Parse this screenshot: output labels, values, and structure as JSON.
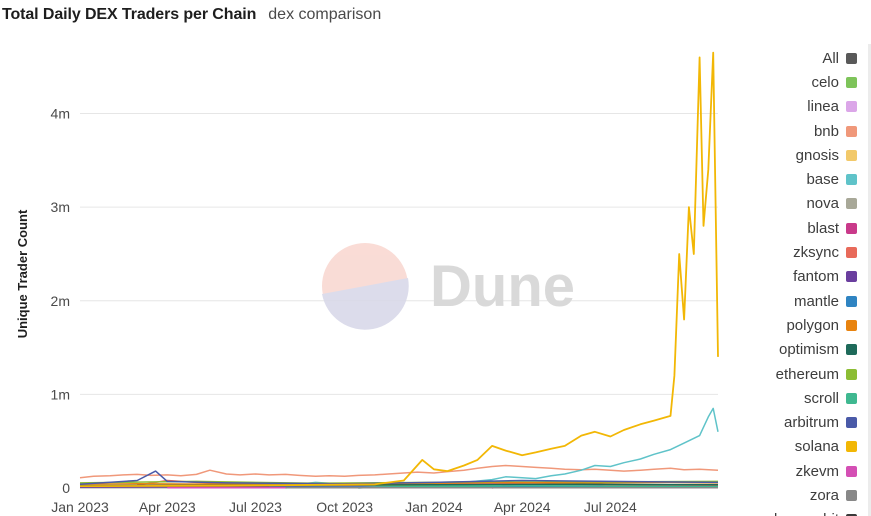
{
  "header": {
    "title": "Total Daily DEX Traders per Chain",
    "subtitle": "dex comparison"
  },
  "watermark": {
    "text": "Dune"
  },
  "chart_data": {
    "type": "line",
    "title": "Total Daily DEX Traders per Chain",
    "xlabel": "",
    "ylabel": "Unique Trader Count",
    "ylim": [
      0,
      4700000
    ],
    "xlim": [
      "2023-01-01",
      "2024-10-20"
    ],
    "grid": true,
    "legend_position": "right",
    "y_ticks": [
      {
        "value": 0,
        "label": "0"
      },
      {
        "value": 1000000,
        "label": "1m"
      },
      {
        "value": 2000000,
        "label": "2m"
      },
      {
        "value": 3000000,
        "label": "3m"
      },
      {
        "value": 4000000,
        "label": "4m"
      }
    ],
    "x_ticks": [
      {
        "date": "2023-01-01",
        "label": "Jan 2023"
      },
      {
        "date": "2023-04-01",
        "label": "Apr 2023"
      },
      {
        "date": "2023-07-01",
        "label": "Jul 2023"
      },
      {
        "date": "2023-10-01",
        "label": "Oct 2023"
      },
      {
        "date": "2024-01-01",
        "label": "Jan 2024"
      },
      {
        "date": "2024-04-01",
        "label": "Apr 2024"
      },
      {
        "date": "2024-07-01",
        "label": "Jul 2024"
      }
    ],
    "series": [
      {
        "name": "All",
        "color": "#595959",
        "points": []
      },
      {
        "name": "celo",
        "color": "#7ec45a",
        "points": [
          [
            "2023-01-01",
            15000
          ],
          [
            "2023-06-01",
            18000
          ],
          [
            "2024-01-01",
            20000
          ],
          [
            "2024-06-01",
            25000
          ],
          [
            "2024-10-20",
            22000
          ]
        ]
      },
      {
        "name": "linea",
        "color": "#dba6e8",
        "points": [
          [
            "2023-07-15",
            5000
          ],
          [
            "2024-01-01",
            15000
          ],
          [
            "2024-06-01",
            18000
          ],
          [
            "2024-10-20",
            15000
          ]
        ]
      },
      {
        "name": "bnb",
        "color": "#f0987a",
        "points": [
          [
            "2023-01-01",
            110000
          ],
          [
            "2023-01-15",
            125000
          ],
          [
            "2023-02-01",
            130000
          ],
          [
            "2023-02-15",
            140000
          ],
          [
            "2023-03-01",
            145000
          ],
          [
            "2023-03-15",
            135000
          ],
          [
            "2023-04-01",
            140000
          ],
          [
            "2023-04-15",
            130000
          ],
          [
            "2023-05-01",
            145000
          ],
          [
            "2023-05-15",
            190000
          ],
          [
            "2023-06-01",
            150000
          ],
          [
            "2023-06-15",
            140000
          ],
          [
            "2023-07-01",
            150000
          ],
          [
            "2023-07-15",
            140000
          ],
          [
            "2023-08-01",
            145000
          ],
          [
            "2023-08-15",
            135000
          ],
          [
            "2023-09-01",
            125000
          ],
          [
            "2023-09-15",
            130000
          ],
          [
            "2023-10-01",
            125000
          ],
          [
            "2023-10-15",
            135000
          ],
          [
            "2023-11-01",
            140000
          ],
          [
            "2023-11-15",
            150000
          ],
          [
            "2023-12-01",
            160000
          ],
          [
            "2023-12-15",
            170000
          ],
          [
            "2024-01-01",
            160000
          ],
          [
            "2024-01-15",
            175000
          ],
          [
            "2024-02-01",
            190000
          ],
          [
            "2024-02-15",
            210000
          ],
          [
            "2024-03-01",
            230000
          ],
          [
            "2024-03-15",
            240000
          ],
          [
            "2024-04-01",
            230000
          ],
          [
            "2024-04-15",
            220000
          ],
          [
            "2024-05-01",
            210000
          ],
          [
            "2024-05-15",
            200000
          ],
          [
            "2024-06-01",
            195000
          ],
          [
            "2024-06-15",
            200000
          ],
          [
            "2024-07-01",
            190000
          ],
          [
            "2024-07-15",
            180000
          ],
          [
            "2024-08-01",
            190000
          ],
          [
            "2024-08-15",
            200000
          ],
          [
            "2024-09-01",
            210000
          ],
          [
            "2024-09-15",
            195000
          ],
          [
            "2024-10-01",
            200000
          ],
          [
            "2024-10-20",
            190000
          ]
        ]
      },
      {
        "name": "gnosis",
        "color": "#f2c96a",
        "points": [
          [
            "2023-01-01",
            5000
          ],
          [
            "2023-10-01",
            6000
          ],
          [
            "2024-10-20",
            7000
          ]
        ]
      },
      {
        "name": "base",
        "color": "#5fc3c9",
        "points": [
          [
            "2023-08-01",
            0
          ],
          [
            "2023-08-15",
            40000
          ],
          [
            "2023-09-01",
            60000
          ],
          [
            "2023-10-01",
            40000
          ],
          [
            "2023-11-01",
            35000
          ],
          [
            "2023-12-01",
            45000
          ],
          [
            "2024-01-01",
            50000
          ],
          [
            "2024-02-01",
            60000
          ],
          [
            "2024-03-01",
            90000
          ],
          [
            "2024-03-15",
            120000
          ],
          [
            "2024-04-01",
            110000
          ],
          [
            "2024-04-15",
            100000
          ],
          [
            "2024-05-01",
            130000
          ],
          [
            "2024-05-15",
            150000
          ],
          [
            "2024-06-01",
            190000
          ],
          [
            "2024-06-15",
            240000
          ],
          [
            "2024-07-01",
            230000
          ],
          [
            "2024-07-15",
            270000
          ],
          [
            "2024-08-01",
            310000
          ],
          [
            "2024-08-15",
            360000
          ],
          [
            "2024-09-01",
            410000
          ],
          [
            "2024-09-15",
            480000
          ],
          [
            "2024-10-01",
            560000
          ],
          [
            "2024-10-10",
            760000
          ],
          [
            "2024-10-15",
            850000
          ],
          [
            "2024-10-20",
            600000
          ]
        ]
      },
      {
        "name": "nova",
        "color": "#a8a898",
        "points": [
          [
            "2023-01-01",
            3000
          ],
          [
            "2024-10-20",
            4000
          ]
        ]
      },
      {
        "name": "blast",
        "color": "#c93a8a",
        "points": [
          [
            "2024-03-01",
            0
          ],
          [
            "2024-03-15",
            30000
          ],
          [
            "2024-05-01",
            40000
          ],
          [
            "2024-07-01",
            35000
          ],
          [
            "2024-10-20",
            25000
          ]
        ]
      },
      {
        "name": "zksync",
        "color": "#e86a5a",
        "points": [
          [
            "2023-03-01",
            30000
          ],
          [
            "2023-04-01",
            80000
          ],
          [
            "2023-05-01",
            60000
          ],
          [
            "2023-07-01",
            40000
          ],
          [
            "2023-10-01",
            30000
          ],
          [
            "2024-01-01",
            40000
          ],
          [
            "2024-04-01",
            50000
          ],
          [
            "2024-06-01",
            60000
          ],
          [
            "2024-07-01",
            30000
          ],
          [
            "2024-10-20",
            25000
          ]
        ]
      },
      {
        "name": "fantom",
        "color": "#6a3e9e",
        "points": [
          [
            "2023-01-01",
            10000
          ],
          [
            "2023-06-01",
            12000
          ],
          [
            "2024-01-01",
            10000
          ],
          [
            "2024-10-20",
            9000
          ]
        ]
      },
      {
        "name": "mantle",
        "color": "#2f84c2",
        "points": [
          [
            "2023-07-15",
            5000
          ],
          [
            "2024-01-01",
            12000
          ],
          [
            "2024-10-20",
            10000
          ]
        ]
      },
      {
        "name": "polygon",
        "color": "#e8830f",
        "points": [
          [
            "2023-01-01",
            40000
          ],
          [
            "2023-03-01",
            45000
          ],
          [
            "2023-06-01",
            40000
          ],
          [
            "2023-09-01",
            35000
          ],
          [
            "2023-12-01",
            45000
          ],
          [
            "2024-03-01",
            60000
          ],
          [
            "2024-06-01",
            55000
          ],
          [
            "2024-09-01",
            60000
          ],
          [
            "2024-10-20",
            55000
          ]
        ]
      },
      {
        "name": "optimism",
        "color": "#1e6a5a",
        "points": [
          [
            "2023-01-01",
            25000
          ],
          [
            "2023-06-01",
            30000
          ],
          [
            "2024-01-01",
            35000
          ],
          [
            "2024-06-01",
            40000
          ],
          [
            "2024-10-20",
            35000
          ]
        ]
      },
      {
        "name": "ethereum",
        "color": "#8cbd34",
        "points": [
          [
            "2023-01-01",
            55000
          ],
          [
            "2023-05-01",
            70000
          ],
          [
            "2023-09-01",
            50000
          ],
          [
            "2024-01-01",
            60000
          ],
          [
            "2024-04-01",
            75000
          ],
          [
            "2024-07-01",
            65000
          ],
          [
            "2024-10-20",
            70000
          ]
        ]
      },
      {
        "name": "scroll",
        "color": "#3fb890",
        "points": [
          [
            "2023-10-15",
            0
          ],
          [
            "2023-11-01",
            10000
          ],
          [
            "2024-04-01",
            25000
          ],
          [
            "2024-10-20",
            15000
          ]
        ]
      },
      {
        "name": "arbitrum",
        "color": "#4a5aa8",
        "points": [
          [
            "2023-01-01",
            40000
          ],
          [
            "2023-03-01",
            80000
          ],
          [
            "2023-03-20",
            180000
          ],
          [
            "2023-04-01",
            70000
          ],
          [
            "2023-06-01",
            55000
          ],
          [
            "2023-10-01",
            45000
          ],
          [
            "2024-01-01",
            60000
          ],
          [
            "2024-04-01",
            80000
          ],
          [
            "2024-07-01",
            70000
          ],
          [
            "2024-10-20",
            60000
          ]
        ]
      },
      {
        "name": "solana",
        "color": "#f2b705",
        "points": [
          [
            "2023-01-01",
            20000
          ],
          [
            "2023-06-01",
            25000
          ],
          [
            "2023-11-01",
            40000
          ],
          [
            "2023-12-01",
            80000
          ],
          [
            "2023-12-20",
            300000
          ],
          [
            "2024-01-01",
            200000
          ],
          [
            "2024-01-15",
            180000
          ],
          [
            "2024-02-01",
            240000
          ],
          [
            "2024-02-15",
            300000
          ],
          [
            "2024-03-01",
            450000
          ],
          [
            "2024-03-15",
            400000
          ],
          [
            "2024-04-01",
            350000
          ],
          [
            "2024-04-15",
            380000
          ],
          [
            "2024-05-01",
            420000
          ],
          [
            "2024-05-15",
            450000
          ],
          [
            "2024-06-01",
            560000
          ],
          [
            "2024-06-15",
            600000
          ],
          [
            "2024-07-01",
            550000
          ],
          [
            "2024-07-15",
            620000
          ],
          [
            "2024-08-01",
            680000
          ],
          [
            "2024-08-15",
            720000
          ],
          [
            "2024-09-01",
            770000
          ],
          [
            "2024-09-05",
            1200000
          ],
          [
            "2024-09-10",
            2500000
          ],
          [
            "2024-09-15",
            1800000
          ],
          [
            "2024-09-20",
            3000000
          ],
          [
            "2024-09-25",
            2500000
          ],
          [
            "2024-10-01",
            4600000
          ],
          [
            "2024-10-05",
            2800000
          ],
          [
            "2024-10-10",
            3400000
          ],
          [
            "2024-10-15",
            4650000
          ],
          [
            "2024-10-20",
            1400000
          ]
        ]
      },
      {
        "name": "zkevm",
        "color": "#d44fb4",
        "points": [
          [
            "2023-04-01",
            2000
          ],
          [
            "2024-10-20",
            3000
          ]
        ]
      },
      {
        "name": "zora",
        "color": "#888888",
        "points": [
          [
            "2023-08-01",
            2000
          ],
          [
            "2024-10-20",
            3000
          ]
        ]
      },
      {
        "name": "bouncebit",
        "color": "#3a3a3a",
        "points": []
      }
    ]
  }
}
